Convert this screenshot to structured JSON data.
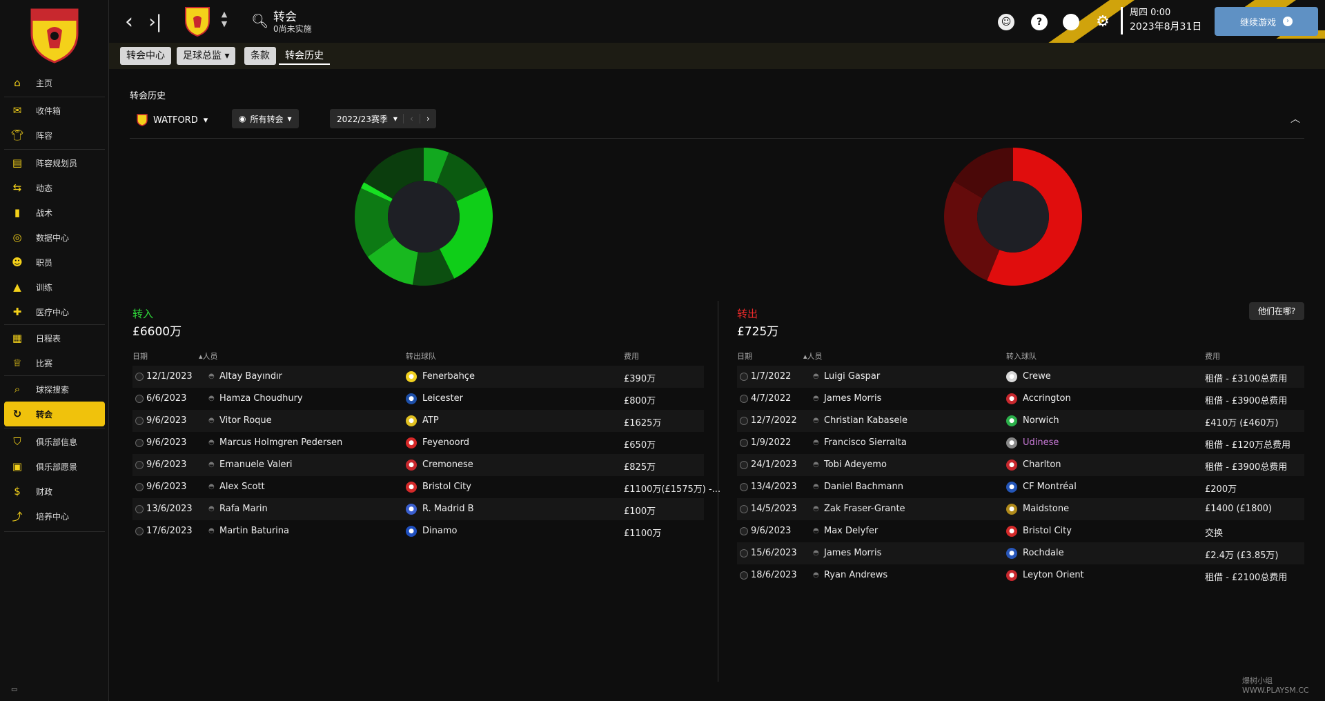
{
  "sidebar": {
    "club_logo_text": "WATFORD",
    "items": [
      {
        "label": "主页",
        "icon": "home-icon"
      },
      {
        "label": "收件箱",
        "icon": "inbox-icon"
      },
      {
        "label": "阵容",
        "icon": "shirt-icon"
      },
      {
        "label": "阵容规划员",
        "icon": "clipboard-icon"
      },
      {
        "label": "动态",
        "icon": "dynamics-icon"
      },
      {
        "label": "战术",
        "icon": "tactics-icon"
      },
      {
        "label": "数据中心",
        "icon": "data-icon"
      },
      {
        "label": "职员",
        "icon": "staff-icon"
      },
      {
        "label": "训练",
        "icon": "training-icon"
      },
      {
        "label": "医疗中心",
        "icon": "medical-icon"
      },
      {
        "label": "日程表",
        "icon": "calendar-icon"
      },
      {
        "label": "比赛",
        "icon": "trophy-icon"
      },
      {
        "label": "球探搜索",
        "icon": "search-icon"
      },
      {
        "label": "转会",
        "icon": "transfer-icon"
      },
      {
        "label": "俱乐部信息",
        "icon": "shield-icon"
      },
      {
        "label": "俱乐部愿景",
        "icon": "briefcase-icon"
      },
      {
        "label": "财政",
        "icon": "money-icon"
      },
      {
        "label": "培养中心",
        "icon": "development-icon"
      }
    ],
    "active": "转会"
  },
  "topbar": {
    "title": "转会",
    "subtitle": "0尚未实施",
    "day_time": "周四 0:00",
    "date": "2023年8月31日",
    "continue_label": "继续游戏"
  },
  "tabs": [
    "转会中心",
    "足球总监",
    "条款",
    "转会历史"
  ],
  "tab_dropdown_index": 1,
  "active_tab": "转会历史",
  "page": {
    "section_title": "转会历史",
    "club_filter": "WATFORD",
    "view_filter": "所有转会",
    "season_filter": "2022/23赛季"
  },
  "incoming": {
    "label": "转入",
    "total": "£6600万",
    "headers": {
      "date": "日期",
      "person": "人员",
      "club": "转出球队",
      "fee": "费用"
    },
    "rows": [
      {
        "date": "12/1/2023",
        "name": "Altay Bayındır",
        "club": "Fenerbahçe",
        "fee": "£390万",
        "crest_color": "#f0d020"
      },
      {
        "date": "6/6/2023",
        "name": "Hamza Choudhury",
        "club": "Leicester",
        "fee": "£800万",
        "crest_color": "#1d4fa8"
      },
      {
        "date": "9/6/2023",
        "name": "Vitor Roque",
        "club": "ATP",
        "fee": "£1625万",
        "crest_color": "#e0c020"
      },
      {
        "date": "9/6/2023",
        "name": "Marcus Holmgren Pedersen",
        "club": "Feyenoord",
        "fee": "£650万",
        "crest_color": "#d62828"
      },
      {
        "date": "9/6/2023",
        "name": "Emanuele Valeri",
        "club": "Cremonese",
        "fee": "£825万",
        "crest_color": "#c8282e"
      },
      {
        "date": "9/6/2023",
        "name": "Alex Scott",
        "club": "Bristol City",
        "fee": "£1100万(£1575万) -...",
        "crest_color": "#d42a2a"
      },
      {
        "date": "13/6/2023",
        "name": "Rafa Marin",
        "club": "R. Madrid B",
        "fee": "£100万",
        "crest_color": "#3a5fcf"
      },
      {
        "date": "17/6/2023",
        "name": "Martin Baturina",
        "club": "Dinamo",
        "fee": "£1100万",
        "crest_color": "#1f4fbf"
      }
    ],
    "chart_data": {
      "type": "pie",
      "categories": [
        "Altay Bayındır",
        "Hamza Choudhury",
        "Vitor Roque",
        "Marcus Holmgren Pedersen",
        "Emanuele Valeri",
        "Alex Scott",
        "Rafa Marin",
        "Martin Baturina"
      ],
      "values": [
        390,
        800,
        1625,
        650,
        825,
        1100,
        100,
        1100
      ],
      "colors": [
        "#12a81f",
        "#0b5a10",
        "#0fce18",
        "#0c4f10",
        "#18b81f",
        "#0d7a14",
        "#17e022",
        "#0b3d0d"
      ]
    }
  },
  "outgoing": {
    "label": "转出",
    "total": "£725万",
    "where_button": "他们在哪?",
    "headers": {
      "date": "日期",
      "person": "人员",
      "club": "转入球队",
      "fee": "费用"
    },
    "rows": [
      {
        "date": "1/7/2022",
        "name": "Luigi Gaspar",
        "club": "Crewe",
        "fee": "租借 - £3100总费用",
        "crest_color": "#d8d8d8",
        "club_purple": false
      },
      {
        "date": "4/7/2022",
        "name": "James Morris",
        "club": "Accrington",
        "fee": "租借 - £3900总费用",
        "crest_color": "#c8282e",
        "club_purple": false
      },
      {
        "date": "12/7/2022",
        "name": "Christian Kabasele",
        "club": "Norwich",
        "fee": "£410万 (£460万)",
        "crest_color": "#2bb04a",
        "club_purple": false
      },
      {
        "date": "1/9/2022",
        "name": "Francisco Sierralta",
        "club": "Udinese",
        "fee": "租借 - £120万总费用",
        "crest_color": "#888888",
        "club_purple": true
      },
      {
        "date": "24/1/2023",
        "name": "Tobi Adeyemo",
        "club": "Charlton",
        "fee": "租借 - £3900总费用",
        "crest_color": "#c8282e",
        "club_purple": false
      },
      {
        "date": "13/4/2023",
        "name": "Daniel Bachmann",
        "club": "CF Montréal",
        "fee": "£200万",
        "crest_color": "#2456b8",
        "club_purple": false
      },
      {
        "date": "14/5/2023",
        "name": "Zak Fraser-Grante",
        "club": "Maidstone",
        "fee": "£1400 (£1800)",
        "crest_color": "#b08a1a",
        "club_purple": false
      },
      {
        "date": "9/6/2023",
        "name": "Max Delyfer",
        "club": "Bristol City",
        "fee": "交换",
        "crest_color": "#d42a2a",
        "club_purple": false
      },
      {
        "date": "15/6/2023",
        "name": "James Morris",
        "club": "Rochdale",
        "fee": "£2.4万 (£3.85万)",
        "crest_color": "#2856b8",
        "club_purple": false
      },
      {
        "date": "18/6/2023",
        "name": "Ryan Andrews",
        "club": "Leyton Orient",
        "fee": "租借 - £2100总费用",
        "crest_color": "#c8282e",
        "club_purple": false
      }
    ],
    "chart_data": {
      "type": "pie",
      "categories": [
        "Christian Kabasele",
        "Daniel Bachmann",
        "Francisco Sierralta"
      ],
      "values": [
        410,
        200,
        120
      ],
      "colors": [
        "#e00d0d",
        "#640b0b",
        "#4a0808"
      ]
    }
  },
  "watermark": "爆树小组 WWW.PLAYSM.CC"
}
